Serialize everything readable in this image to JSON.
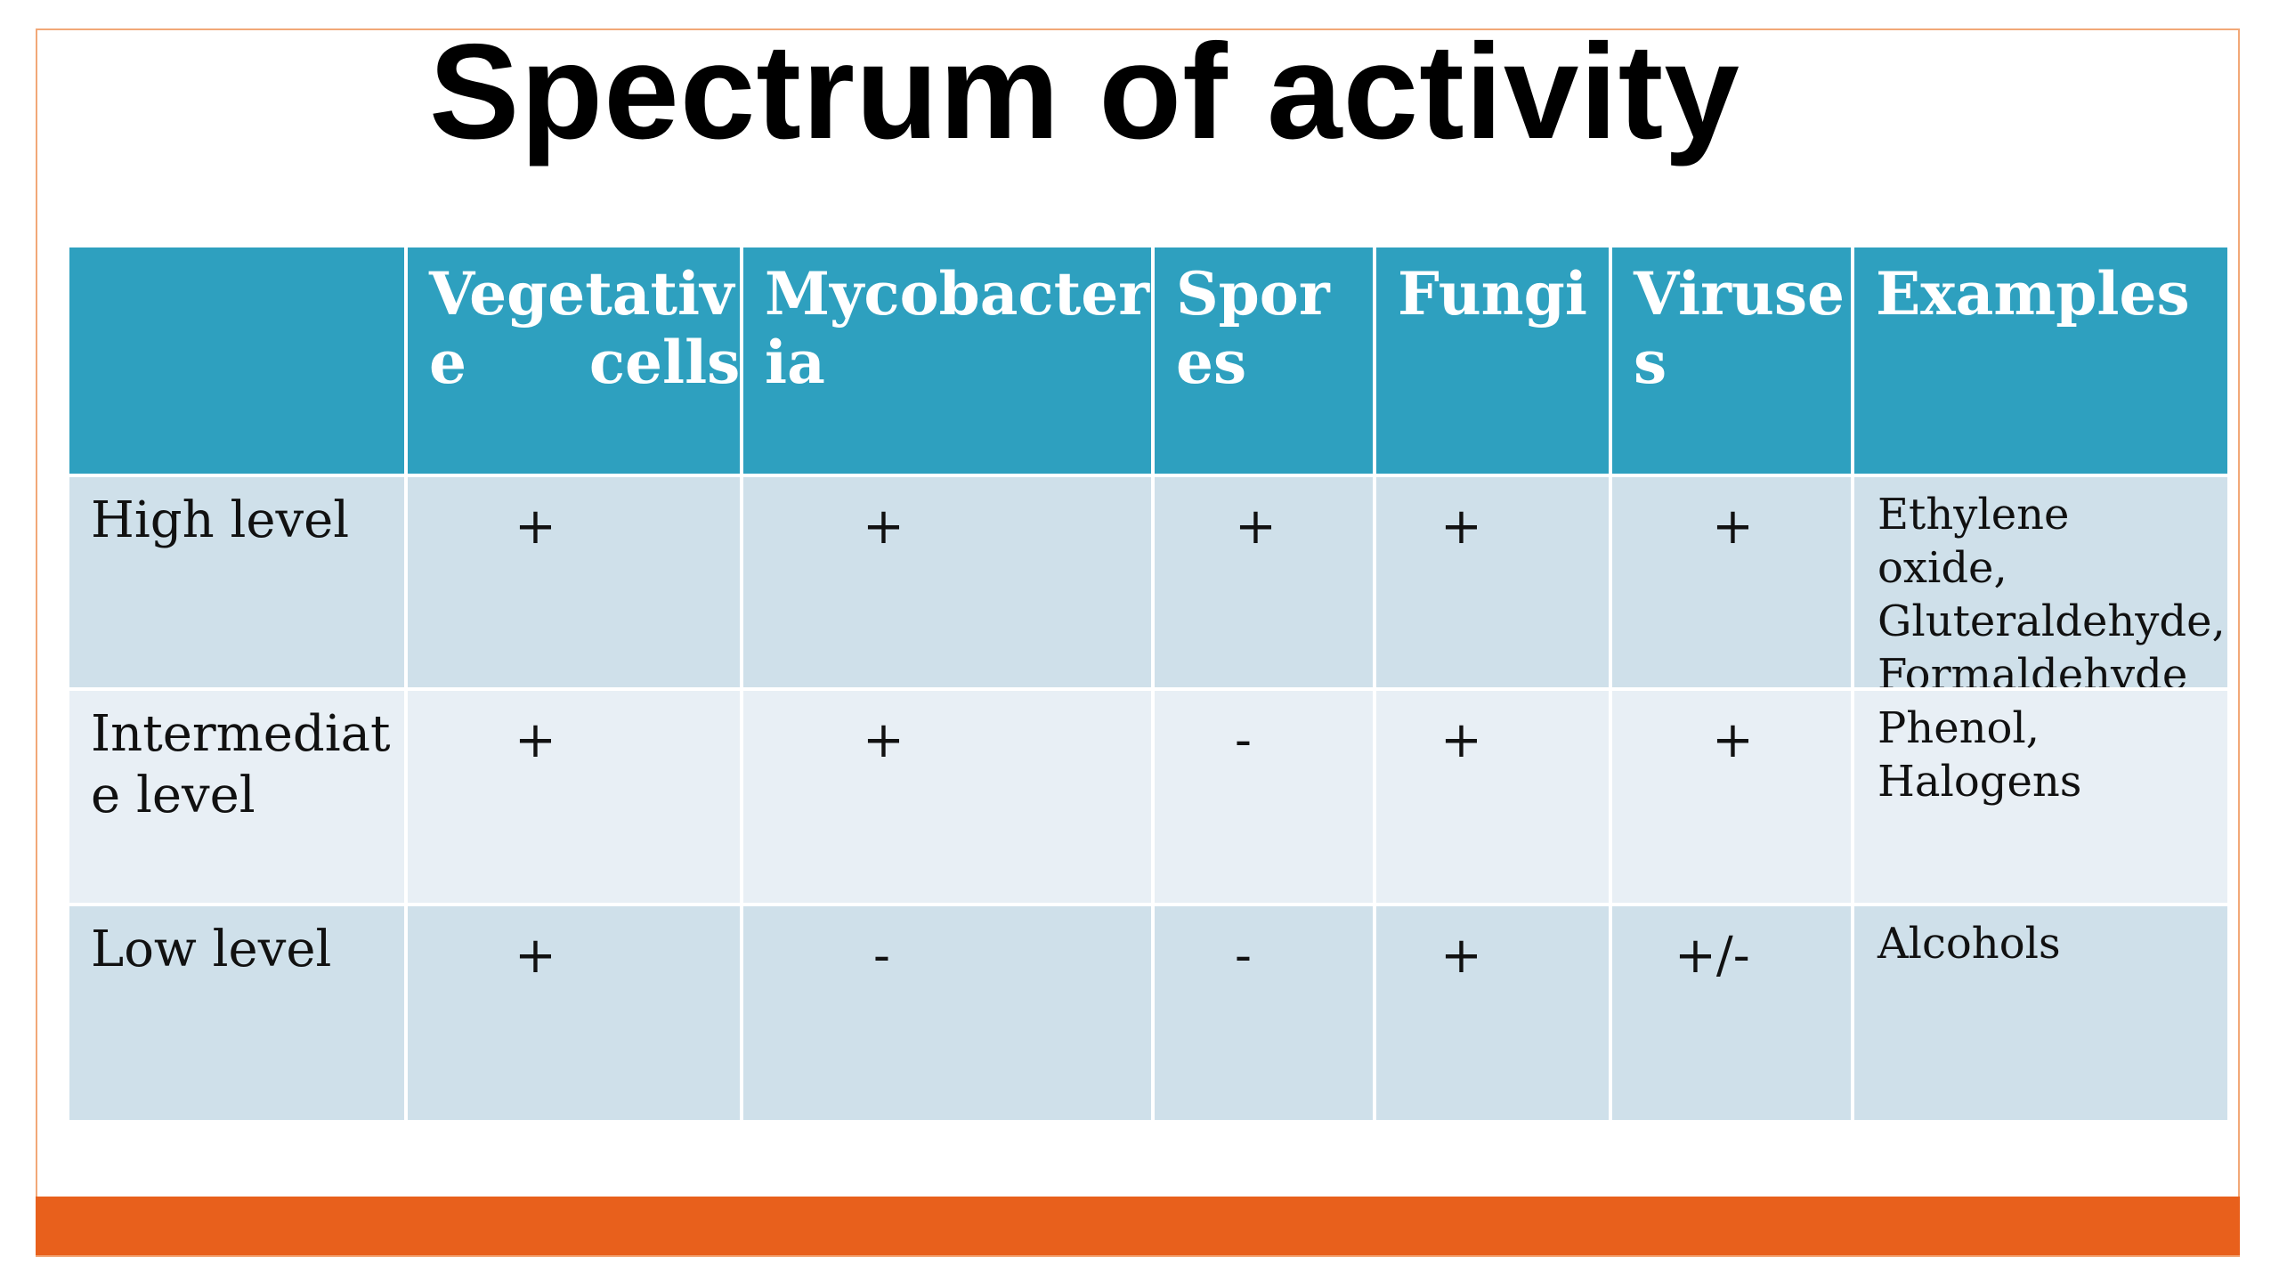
{
  "title": "Spectrum of activity",
  "headers": [
    "",
    "Vegetativ\ne      cells",
    "Mycobacter\nia",
    "Spor\nes",
    "Fungi",
    "Viruse\ns",
    "Examples"
  ],
  "rows": [
    {
      "label": "High level",
      "marks": [
        "+",
        "+",
        "+",
        "+",
        "+"
      ],
      "examples": "Ethylene oxide,\nGluteraldehyde,\nFormaldehyde"
    },
    {
      "label": "Intermediat\ne level",
      "marks": [
        "+",
        "+",
        "-",
        "+",
        "+"
      ],
      "examples": "Phenol,\nHalogens"
    },
    {
      "label": "Low level",
      "marks": [
        "+",
        "-",
        "-",
        "+",
        "+/-"
      ],
      "examples": "Alcohols"
    }
  ],
  "colors": {
    "header_bg": "#2ea0bf",
    "row_a_bg": "#cfe0ea",
    "row_b_bg": "#e8eff5",
    "accent_bar": "#e8601c",
    "frame_border": "#f2a878"
  }
}
